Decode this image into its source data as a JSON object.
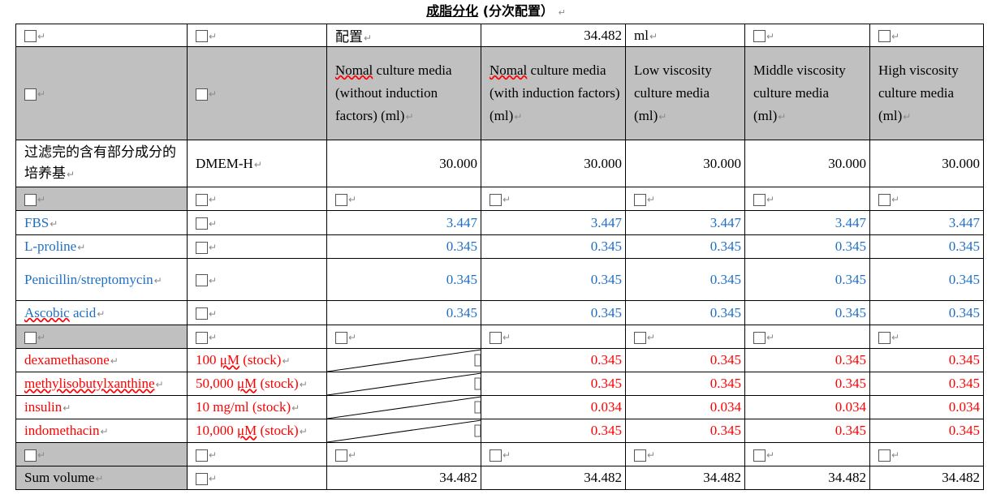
{
  "title": {
    "main": "成脂分化",
    "sub": "(分次配置）"
  },
  "config_row": {
    "label": "配置",
    "total": "34.482",
    "unit": "ml"
  },
  "columns": [
    "Nomal culture media (without induction factors) (ml)",
    "Nomal culture media (with induction factors) (ml)",
    "Low viscosity culture media (ml)",
    "Middle viscosity culture media (ml)",
    "High viscosity culture media (ml)"
  ],
  "base_medium": {
    "label": "过滤完的含有部分成分的培养基",
    "name": "DMEM-H",
    "values": [
      "30.000",
      "30.000",
      "30.000",
      "30.000",
      "30.000"
    ]
  },
  "supplements": [
    {
      "name": "FBS",
      "values": [
        "3.447",
        "3.447",
        "3.447",
        "3.447",
        "3.447"
      ]
    },
    {
      "name": "L-proline",
      "values": [
        "0.345",
        "0.345",
        "0.345",
        "0.345",
        "0.345"
      ]
    },
    {
      "name": "Penicillin/streptomycin",
      "values": [
        "0.345",
        "0.345",
        "0.345",
        "0.345",
        "0.345"
      ]
    },
    {
      "name": "Ascobic acid",
      "values": [
        "0.345",
        "0.345",
        "0.345",
        "0.345",
        "0.345"
      ]
    }
  ],
  "inducers": [
    {
      "name": "dexamethasone",
      "stock": "100 μM (stock)",
      "values": [
        "0.345",
        "0.345",
        "0.345",
        "0.345"
      ]
    },
    {
      "name": "methylisobutylxanthine",
      "stock": "50,000 μM (stock)",
      "values": [
        "0.345",
        "0.345",
        "0.345",
        "0.345"
      ]
    },
    {
      "name": "insulin",
      "stock": "10 mg/ml (stock)",
      "values": [
        "0.034",
        "0.034",
        "0.034",
        "0.034"
      ]
    },
    {
      "name": "indomethacin",
      "stock": "10,000 μM (stock)",
      "values": [
        "0.345",
        "0.345",
        "0.345",
        "0.345"
      ]
    }
  ],
  "sum": {
    "label": "Sum volume",
    "values": [
      "34.482",
      "34.482",
      "34.482",
      "34.482",
      "34.482"
    ]
  },
  "colors": {
    "header_gray": "#c0c0c0",
    "supplement_blue": "#1f6fc5",
    "inducer_red": "#ff0000"
  }
}
